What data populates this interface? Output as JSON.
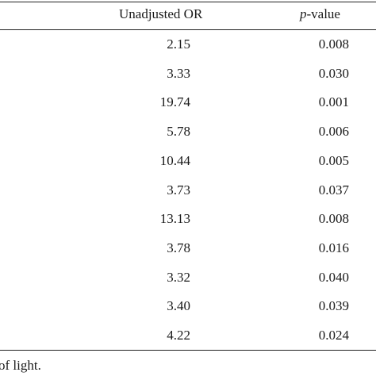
{
  "table": {
    "header": {
      "or": "Unadjusted OR",
      "p_value": {
        "italic": "p",
        "rest": "-value"
      }
    },
    "rows": [
      [
        "2.15",
        "0.008"
      ],
      [
        "3.33",
        "0.030"
      ],
      [
        "19.74",
        "0.001"
      ],
      [
        "5.78",
        "0.006"
      ],
      [
        "10.44",
        "0.005"
      ],
      [
        "3.73",
        "0.037"
      ],
      [
        "13.13",
        "0.008"
      ],
      [
        "3.78",
        "0.016"
      ],
      [
        "3.32",
        "0.040"
      ],
      [
        "3.40",
        "0.039"
      ],
      [
        "4.22",
        "0.024"
      ]
    ]
  },
  "footnote": "of light."
}
